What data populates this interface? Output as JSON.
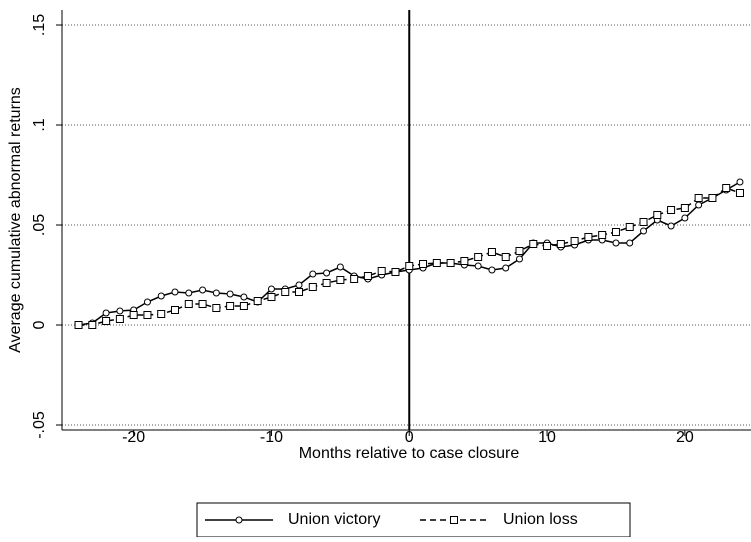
{
  "chart_data": {
    "type": "line",
    "y_label": "Average cumulative abnormal returns",
    "x_label": "Months relative to case closure",
    "x": [
      -24,
      -23,
      -22,
      -21,
      -20,
      -19,
      -18,
      -17,
      -16,
      -15,
      -14,
      -13,
      -12,
      -11,
      -10,
      -9,
      -8,
      -7,
      -6,
      -5,
      -4,
      -3,
      -2,
      -1,
      0,
      1,
      2,
      3,
      4,
      5,
      6,
      7,
      8,
      9,
      10,
      11,
      12,
      13,
      14,
      15,
      16,
      17,
      18,
      19,
      20,
      21,
      22,
      23,
      24
    ],
    "series": [
      {
        "name": "Union victory",
        "color": "#000000",
        "marker": "circle",
        "dash": "solid",
        "values": [
          0,
          0.001,
          0.006,
          0.007,
          0.0075,
          0.0115,
          0.0145,
          0.0165,
          0.016,
          0.0175,
          0.016,
          0.0155,
          0.014,
          0.0115,
          0.018,
          0.018,
          0.02,
          0.0255,
          0.026,
          0.029,
          0.0245,
          0.023,
          0.025,
          0.0265,
          0.0275,
          0.0285,
          0.031,
          0.031,
          0.03,
          0.0295,
          0.0275,
          0.0285,
          0.033,
          0.041,
          0.041,
          0.039,
          0.04,
          0.0425,
          0.0425,
          0.041,
          0.041,
          0.047,
          0.0525,
          0.0495,
          0.0535,
          0.06,
          0.0635,
          0.0675,
          0.0715
        ]
      },
      {
        "name": "Union loss",
        "color": "#000000",
        "marker": "square",
        "dash": "dashed",
        "values": [
          0,
          0,
          0.002,
          0.003,
          0.005,
          0.005,
          0.0055,
          0.0075,
          0.0105,
          0.0105,
          0.0085,
          0.0095,
          0.0095,
          0.012,
          0.014,
          0.0165,
          0.0165,
          0.019,
          0.021,
          0.0225,
          0.023,
          0.0245,
          0.027,
          0.0265,
          0.0295,
          0.0305,
          0.031,
          0.031,
          0.032,
          0.034,
          0.0365,
          0.034,
          0.037,
          0.0405,
          0.0395,
          0.0405,
          0.042,
          0.044,
          0.045,
          0.0465,
          0.049,
          0.0515,
          0.055,
          0.0575,
          0.0585,
          0.0635,
          0.0635,
          0.0685,
          0.066
        ]
      }
    ],
    "xlim": [
      -25.2,
      24.8
    ],
    "xticks": [
      -20,
      -10,
      0,
      10,
      20
    ],
    "ylim": [
      -0.0525,
      0.1575
    ],
    "yticks": [
      {
        "value": -0.05,
        "label": "-.05"
      },
      0,
      {
        "value": 0.05,
        "label": ".05"
      },
      {
        "value": 0.1,
        "label": ".1"
      },
      {
        "value": 0.15,
        "label": ".15"
      }
    ],
    "grid": true,
    "xline": 0,
    "legend": "bottom"
  }
}
